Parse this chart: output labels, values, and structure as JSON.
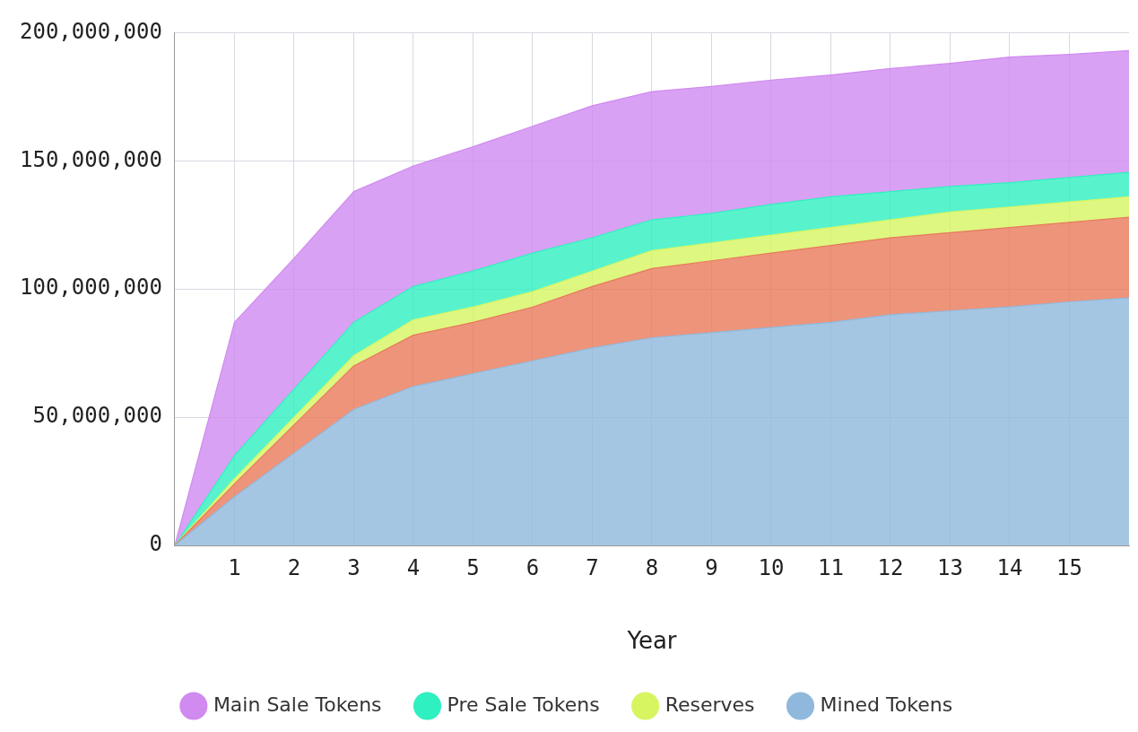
{
  "chart_data": {
    "type": "area",
    "xlabel": "Year",
    "x": [
      0,
      1,
      2,
      3,
      4,
      5,
      6,
      7,
      8,
      9,
      10,
      11,
      12,
      13,
      14,
      15,
      16
    ],
    "stacked": true,
    "xlim": [
      0,
      16
    ],
    "xticks": [
      1,
      2,
      3,
      4,
      5,
      6,
      7,
      8,
      9,
      10,
      11,
      12,
      13,
      14,
      15
    ],
    "ylim": [
      0,
      200000000
    ],
    "yticks": [
      {
        "value": 0,
        "label": "0"
      },
      {
        "value": 50000000,
        "label": "50,000,000"
      },
      {
        "value": 100000000,
        "label": "100,000,000"
      },
      {
        "value": 150000000,
        "label": "150,000,000"
      },
      {
        "value": 200000000,
        "label": "200,000,000"
      }
    ],
    "grid": true,
    "legend": "bottom",
    "series": [
      {
        "name": "Mined Tokens",
        "color": "#8fb8dc",
        "values": [
          0,
          19000000,
          36000000,
          53000000,
          62000000,
          67000000,
          72000000,
          77000000,
          81000000,
          83000000,
          85000000,
          87000000,
          90000000,
          91500000,
          93000000,
          95000000,
          96500000
        ]
      },
      {
        "color": "#e8795a",
        "values": [
          0,
          5000000,
          11000000,
          17000000,
          20000000,
          20000000,
          21000000,
          24000000,
          27000000,
          28000000,
          29000000,
          30000000,
          30000000,
          30500000,
          31000000,
          31000000,
          31500000
        ]
      },
      {
        "name": "Reserves",
        "color": "#d6f560",
        "values": [
          0,
          2000000,
          3000000,
          4000000,
          6000000,
          6000000,
          6000000,
          6000000,
          7000000,
          7000000,
          7000000,
          7000000,
          7000000,
          8000000,
          8000000,
          8000000,
          8000000
        ]
      },
      {
        "name": "Pre Sale Tokens",
        "color": "#2ef0c0",
        "values": [
          0,
          9000000,
          11000000,
          13000000,
          13000000,
          14000000,
          15000000,
          13000000,
          12000000,
          11500000,
          12000000,
          12000000,
          11000000,
          10000000,
          9500000,
          9500000,
          9500000
        ]
      },
      {
        "name": "Main Sale Tokens",
        "color": "#d08af0",
        "values": [
          0,
          52000000,
          51000000,
          51000000,
          47000000,
          48500000,
          49500000,
          51500000,
          50000000,
          49500000,
          48500000,
          47500000,
          48000000,
          48000000,
          49000000,
          48000000,
          47500000
        ]
      }
    ]
  }
}
